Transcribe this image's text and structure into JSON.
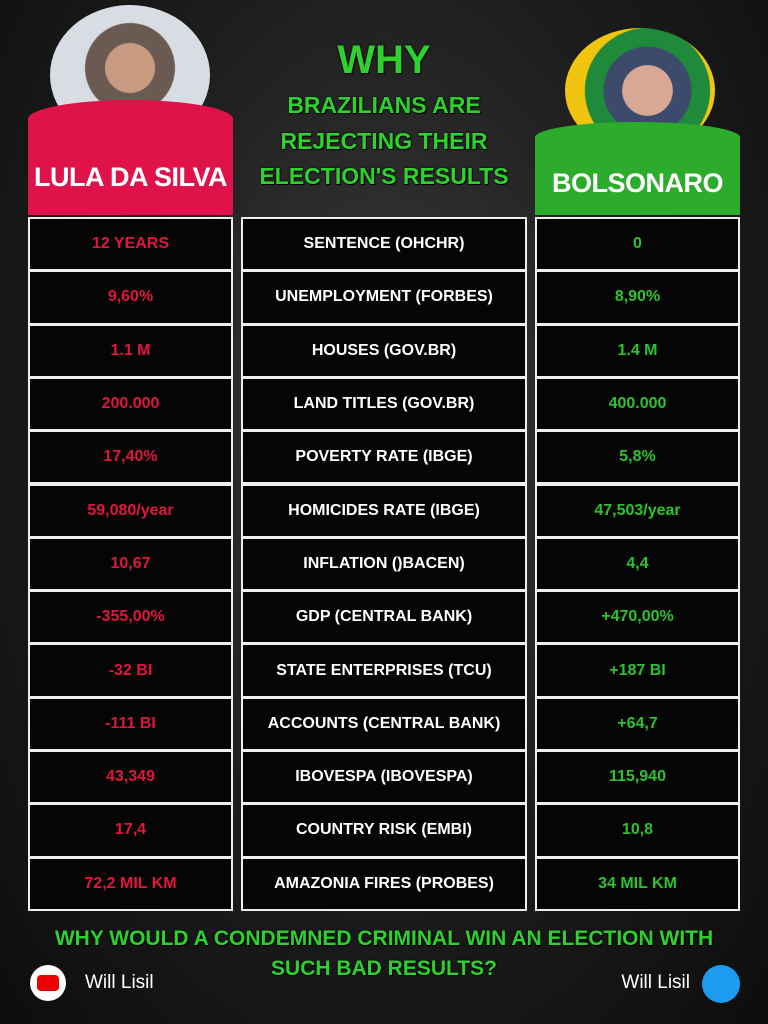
{
  "header": {
    "title": "WHY",
    "subtitle": [
      "BRAZILIANS ARE",
      "REJECTING THEIR",
      "ELECTION'S RESULTS"
    ]
  },
  "left_name": "LULA DA SILVA",
  "right_name": "BOLSONARO",
  "table": {
    "rows": [
      [
        "12 YEARS",
        "SENTENCE (OHCHR)",
        "0"
      ],
      [
        "9,60%",
        "UNEMPLOYMENT (FORBES)",
        "8,90%"
      ],
      [
        "1.1 M",
        "HOUSES (GOV.BR)",
        "1.4 M"
      ],
      [
        "200.000",
        "LAND TITLES (GOV.BR)",
        "400.000"
      ],
      [
        "17,40%",
        "POVERTY RATE (IBGE)",
        "5,8%"
      ],
      [
        "59,080/year",
        "HOMICIDES RATE (IBGE)",
        "47,503/year"
      ],
      [
        "10,67",
        "INFLATION ()BACEN)",
        "4,4"
      ],
      [
        "-355,00%",
        "GDP (CENTRAL BANK)",
        "+470,00%"
      ],
      [
        "-32 BI",
        "STATE ENTERPRISES (TCU)",
        "+187 BI"
      ],
      [
        "-111 BI",
        "ACCOUNTS (CENTRAL BANK)",
        "+64,7"
      ],
      [
        "43,349",
        "IBOVESPA (IBOVESPA)",
        "115,940"
      ],
      [
        "17,4",
        "COUNTRY RISK (EMBI)",
        "10,8"
      ],
      [
        "72,2 MIL KM",
        "AMAZONIA FIRES (PROBES)",
        "34 MIL KM"
      ]
    ]
  },
  "footer": {
    "question": [
      "WHY WOULD A CONDEMNED CRIMINAL WIN AN ELECTION WITH",
      "SUCH BAD RESULTS?"
    ],
    "left_credit": "Will Lisil",
    "right_credit": "Will Lisil"
  }
}
